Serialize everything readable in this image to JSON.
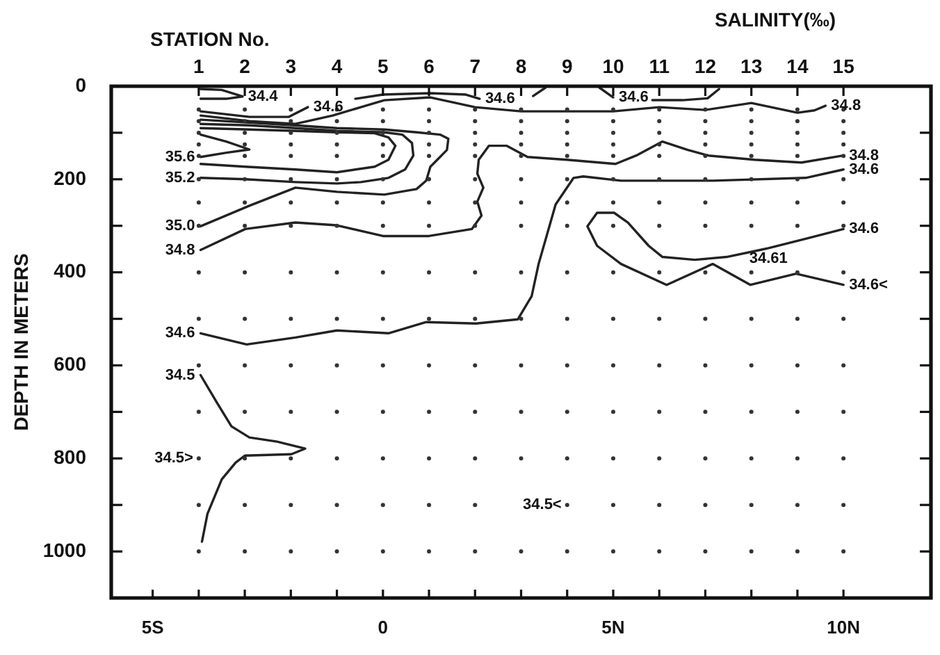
{
  "chart_data": {
    "type": "line",
    "title": "SALINITY(‰)",
    "x2label": "STATION No.",
    "ylabel": "DEPTH IN METERS",
    "xlim": [
      -5.9,
      11.9
    ],
    "xticks": [
      {
        "value": -5,
        "label": "5S"
      },
      {
        "value": -4,
        "label": null
      },
      {
        "value": -3,
        "label": null
      },
      {
        "value": -2,
        "label": null
      },
      {
        "value": -1,
        "label": null
      },
      0,
      {
        "value": 1,
        "label": null
      },
      {
        "value": 2,
        "label": null
      },
      {
        "value": 3,
        "label": null
      },
      {
        "value": 4,
        "label": null
      },
      {
        "value": 5,
        "label": "5N"
      },
      {
        "value": 6,
        "label": null
      },
      {
        "value": 7,
        "label": null
      },
      {
        "value": 8,
        "label": null
      },
      {
        "value": 9,
        "label": null
      },
      {
        "value": 10,
        "label": "10N"
      }
    ],
    "x2lim": [
      -0.9,
      16.9
    ],
    "x2ticks": [
      1,
      2,
      3,
      4,
      5,
      6,
      7,
      8,
      9,
      10,
      11,
      12,
      13,
      14,
      15
    ],
    "ylim": [
      1100,
      0
    ],
    "yticks": [
      0,
      {
        "value": 100,
        "label": null
      },
      200,
      {
        "value": 300,
        "label": null
      },
      400,
      {
        "value": 500,
        "label": null
      },
      600,
      {
        "value": 700,
        "label": null
      },
      800,
      {
        "value": 900,
        "label": null
      },
      1000
    ],
    "series": [
      {
        "type": "scatter",
        "color": "#333333",
        "marker": "circle",
        "x": [
          -4,
          -3,
          -2,
          -1,
          0,
          1,
          2,
          3,
          4,
          5,
          6,
          7,
          8,
          9,
          10,
          -4,
          -3,
          -2,
          -1,
          0,
          1,
          2,
          3,
          4,
          5,
          6,
          7,
          8,
          9,
          10,
          -4,
          -3,
          -2,
          -1,
          0,
          1,
          2,
          3,
          4,
          5,
          6,
          7,
          8,
          9,
          10,
          -4,
          -3,
          -2,
          -1,
          0,
          1,
          2,
          3,
          4,
          5,
          6,
          7,
          8,
          9,
          10,
          -4,
          -3,
          -2,
          -1,
          0,
          1,
          2,
          3,
          4,
          5,
          6,
          7,
          8,
          9,
          10,
          -4,
          -3,
          -2,
          -1,
          0,
          1,
          2,
          3,
          4,
          5,
          6,
          7,
          8,
          9,
          10,
          -4,
          -3,
          -2,
          -1,
          0,
          1,
          2,
          3,
          4,
          5,
          6,
          7,
          8,
          9,
          10,
          -4,
          -3,
          -2,
          -1,
          0,
          1,
          2,
          3,
          4,
          5,
          6,
          7,
          8,
          9,
          10,
          -4,
          -3,
          -2,
          -1,
          0,
          1,
          2,
          3,
          4,
          5,
          6,
          7,
          8,
          9,
          10,
          -4,
          -3,
          -2,
          -1,
          0,
          1,
          2,
          3,
          4,
          5,
          6,
          7,
          8,
          9,
          10,
          -4,
          -3,
          -2,
          -1,
          0,
          1,
          2,
          3,
          4,
          5,
          6,
          7,
          8,
          9,
          10,
          -4,
          -3,
          -2,
          -1,
          0,
          1,
          2,
          3,
          4,
          5,
          6,
          7,
          8,
          9,
          10,
          -4,
          -3,
          -2,
          -1,
          0,
          1,
          2,
          3,
          4,
          5,
          6,
          7,
          8,
          9,
          10,
          -4,
          -3,
          -2,
          -1,
          0,
          1,
          2,
          4,
          5,
          6,
          7,
          8,
          9,
          10,
          -4,
          -3,
          -2,
          -1,
          0,
          1,
          2,
          3,
          4,
          5,
          6,
          7,
          8,
          9,
          10
        ],
        "values": [
          50,
          50,
          50,
          50,
          50,
          50,
          50,
          50,
          50,
          50,
          50,
          50,
          50,
          50,
          50,
          75,
          75,
          75,
          75,
          75,
          75,
          75,
          75,
          75,
          75,
          75,
          75,
          75,
          75,
          75,
          100,
          100,
          100,
          100,
          100,
          100,
          100,
          100,
          100,
          100,
          100,
          100,
          100,
          100,
          100,
          125,
          125,
          125,
          125,
          125,
          125,
          125,
          125,
          125,
          125,
          125,
          125,
          125,
          125,
          125,
          150,
          150,
          150,
          150,
          150,
          150,
          150,
          150,
          150,
          150,
          150,
          150,
          150,
          150,
          150,
          200,
          200,
          200,
          200,
          200,
          200,
          200,
          200,
          200,
          200,
          200,
          200,
          200,
          200,
          200,
          250,
          250,
          250,
          250,
          250,
          250,
          250,
          250,
          250,
          250,
          250,
          250,
          250,
          250,
          250,
          300,
          300,
          300,
          300,
          300,
          300,
          300,
          300,
          300,
          300,
          300,
          300,
          300,
          300,
          300,
          400,
          400,
          400,
          400,
          400,
          400,
          400,
          400,
          400,
          400,
          400,
          400,
          400,
          400,
          400,
          500,
          500,
          500,
          500,
          500,
          500,
          500,
          500,
          500,
          500,
          500,
          500,
          500,
          500,
          500,
          600,
          600,
          600,
          600,
          600,
          600,
          600,
          600,
          600,
          600,
          600,
          600,
          600,
          600,
          600,
          700,
          700,
          700,
          700,
          700,
          700,
          700,
          700,
          700,
          700,
          700,
          700,
          700,
          700,
          700,
          800,
          800,
          800,
          800,
          800,
          800,
          800,
          800,
          800,
          800,
          800,
          800,
          800,
          800,
          800,
          900,
          900,
          900,
          900,
          900,
          900,
          900,
          900,
          900,
          900,
          900,
          900,
          900,
          900,
          1000,
          1000,
          1000,
          1000,
          1000,
          1000,
          1000,
          1000,
          1000,
          1000,
          1000,
          1000,
          1000,
          1000,
          1000
        ]
      },
      {
        "color": "#222222",
        "marker": "none",
        "x": [
          -3.05,
          -3.5,
          -3.96
        ],
        "values": [
          22,
          8,
          6
        ]
      },
      {
        "color": "#222222",
        "marker": "none",
        "x": [
          -3.05,
          -3.4,
          -3.96
        ],
        "values": [
          22,
          27,
          27
        ]
      },
      {
        "color": "#222222",
        "marker": "none",
        "x": [
          -3.96,
          -2.9,
          -2.05,
          -1.63
        ],
        "values": [
          54,
          66,
          66,
          45
        ]
      },
      {
        "color": "#222222",
        "marker": "none",
        "x": [
          -0.6,
          0,
          1.03,
          1.8,
          2.1
        ],
        "values": [
          27,
          18,
          15,
          18,
          27
        ]
      },
      {
        "color": "#222222",
        "marker": "none",
        "x": [
          3.26,
          3.53
        ],
        "values": [
          21,
          3
        ]
      },
      {
        "color": "#222222",
        "marker": "none",
        "x": [
          4.7,
          5.0
        ],
        "values": [
          3,
          24
        ]
      },
      {
        "color": "#222222",
        "marker": "none",
        "x": [
          5.85,
          6.5,
          7.05,
          7.3
        ],
        "values": [
          30,
          30,
          26,
          6
        ]
      },
      {
        "color": "#222222",
        "marker": "none",
        "x": [
          -3.96,
          -2.9,
          -1.9,
          -1.09,
          -0.48,
          0.03,
          1.03,
          2.0,
          3.0,
          4.0,
          5.0,
          6.0,
          7.0,
          8.0,
          9.0,
          9.37,
          9.61
        ],
        "values": [
          63,
          75,
          81,
          63,
          45,
          30,
          24,
          45,
          54,
          54,
          54,
          45,
          51,
          36,
          57,
          52,
          42
        ]
      },
      {
        "color": "#222222",
        "marker": "none",
        "x": [
          -3.96,
          -2.9,
          -1.9,
          -1.0,
          0.03,
          0.73,
          1.24,
          1.42,
          1.39,
          1.18,
          1.03,
          0.94,
          0.73,
          0.03,
          -1.0,
          -1.9,
          -2.9,
          -3.96
        ],
        "values": [
          72,
          78,
          84,
          90,
          93,
          99,
          104,
          113,
          137,
          158,
          173,
          203,
          221,
          233,
          227,
          218,
          257,
          301
        ]
      },
      {
        "color": "#222222",
        "marker": "none",
        "x": [
          -3.96,
          -2.9,
          -1.9,
          -1.0,
          0.03,
          0.42,
          0.63,
          0.66,
          0.48,
          0.12,
          -0.48,
          -1.0,
          -1.9,
          -2.99,
          -3.96
        ],
        "values": [
          81,
          84,
          90,
          96,
          99,
          104,
          122,
          149,
          179,
          197,
          206,
          209,
          206,
          200,
          197
        ]
      },
      {
        "color": "#222222",
        "marker": "none",
        "x": [
          -3.96,
          -2.9,
          -1.9,
          -1.0,
          -0.18,
          0.12,
          0.27,
          0.12,
          -0.18,
          -1.0,
          -1.9,
          -2.99,
          -3.96
        ],
        "values": [
          90,
          93,
          96,
          99,
          101,
          110,
          128,
          158,
          173,
          185,
          179,
          173,
          167
        ]
      },
      {
        "color": "#222222",
        "marker": "none",
        "x": [
          -3.96,
          -3.4,
          -2.9,
          -3.4,
          -3.96
        ],
        "values": [
          152,
          143,
          136,
          119,
          104
        ]
      },
      {
        "color": "#222222",
        "marker": "none",
        "x": [
          -3.96,
          -2.99,
          -1.9,
          -1.0,
          0,
          1.0,
          1.93,
          2.14,
          2.05,
          2.18,
          2.05,
          2.08,
          2.3,
          2.69,
          3.14,
          3.99,
          5.05,
          5.5,
          6.07,
          6.62,
          7.07,
          8.07,
          9.09,
          10.0
        ],
        "values": [
          352,
          307,
          293,
          299,
          322,
          322,
          307,
          278,
          248,
          218,
          188,
          158,
          128,
          128,
          152,
          158,
          167,
          149,
          119,
          137,
          149,
          158,
          164,
          149
        ]
      },
      {
        "color": "#222222",
        "marker": "none",
        "x": [
          -3.96,
          -2.96,
          -1.9,
          -1.0,
          0.12,
          0.94,
          2.02,
          2.93,
          3.23,
          3.38,
          3.75,
          4.14,
          4.35,
          5.17,
          7.16,
          9.18,
          10.0
        ],
        "values": [
          531,
          555,
          540,
          525,
          531,
          507,
          510,
          501,
          451,
          382,
          254,
          197,
          194,
          203,
          203,
          197,
          179
        ]
      },
      {
        "color": "#222222",
        "marker": "none",
        "x": [
          10.0,
          9.18,
          8.37,
          8.19,
          7.46,
          6.77,
          6.07,
          5.77,
          5.32,
          5.02,
          4.65,
          4.44,
          4.65,
          5.17,
          6.16,
          7.16,
          7.98,
          8.97,
          10.0
        ],
        "values": [
          307,
          328,
          348,
          352,
          367,
          373,
          367,
          343,
          293,
          272,
          272,
          301,
          343,
          382,
          427,
          382,
          427,
          403,
          427
        ]
      },
      {
        "color": "#222222",
        "marker": "none",
        "x": [
          -3.96,
          -3.6,
          -3.29,
          -2.9,
          -2.3,
          -1.69,
          -1.99,
          -3.0,
          -3.2,
          -3.5,
          -3.81,
          -3.93
        ],
        "values": [
          621,
          681,
          731,
          755,
          764,
          779,
          791,
          794,
          809,
          845,
          919,
          979
        ]
      }
    ],
    "annotations": [
      {
        "text": "34.4",
        "x": -3.05,
        "y": 22
      },
      {
        "text": "34.6",
        "x": -1.63,
        "y": 45
      },
      {
        "text": "34.6",
        "x": 2.1,
        "y": 27
      },
      {
        "text": "34.6",
        "x": 5.0,
        "y": 24
      },
      {
        "text": "34.8",
        "x": 9.61,
        "y": 42
      },
      {
        "text": "35.6",
        "x": -3.96,
        "y": 152
      },
      {
        "text": "35.2",
        "x": -3.96,
        "y": 197
      },
      {
        "text": "35.0",
        "x": -3.96,
        "y": 301
      },
      {
        "text": "34.8",
        "x": -3.96,
        "y": 352
      },
      {
        "text": "34.8",
        "x": 10.0,
        "y": 149
      },
      {
        "text": "34.6",
        "x": 10.0,
        "y": 179
      },
      {
        "text": "34.6",
        "x": 10.0,
        "y": 307
      },
      {
        "text": "34.61",
        "x": 8.37,
        "y": 348
      },
      {
        "text": "34.6<",
        "x": 10.0,
        "y": 427
      },
      {
        "text": "34.6",
        "x": -3.96,
        "y": 531
      },
      {
        "text": "34.5",
        "x": -3.96,
        "y": 621
      },
      {
        "text": "34.5>",
        "x": -4,
        "y": 800
      },
      {
        "text": "34.5<",
        "x": 4,
        "y": 900
      }
    ]
  }
}
